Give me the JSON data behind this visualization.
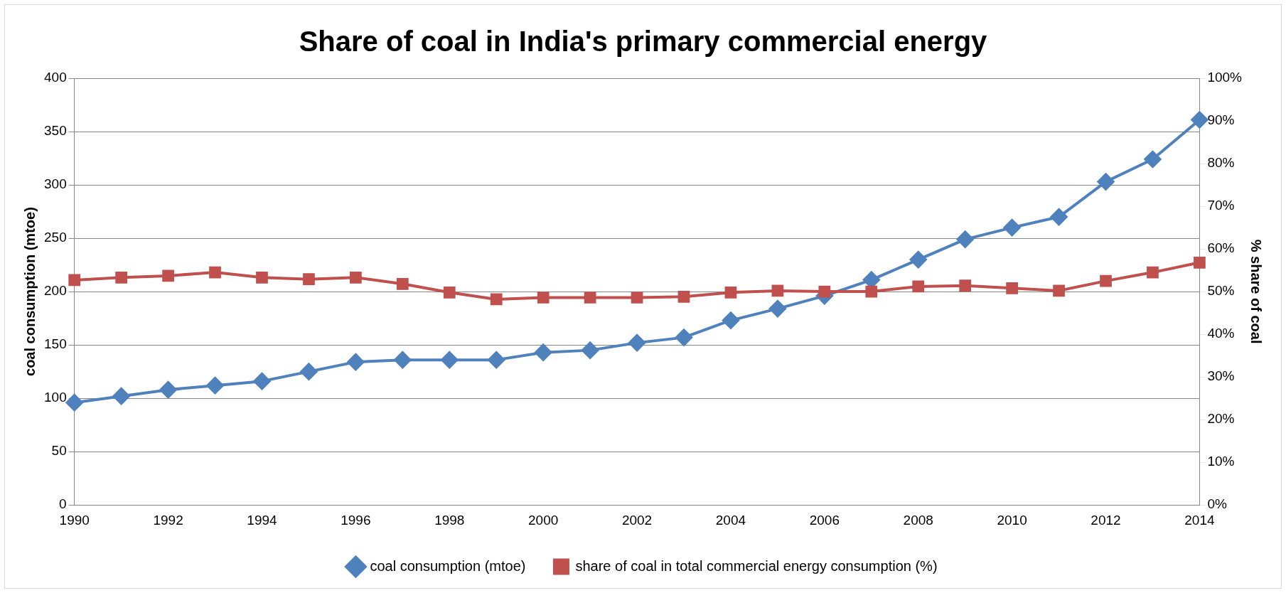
{
  "chart_data": {
    "type": "line",
    "title": "Share of coal in India's primary commercial energy",
    "ylabel": "coal consumption (mtoe)",
    "y2label": "% share of coal",
    "categories": [
      "1990",
      null,
      "1992",
      null,
      "1994",
      null,
      "1996",
      null,
      "1998",
      null,
      "2000",
      null,
      "2002",
      null,
      "2004",
      null,
      "2006",
      null,
      "2008",
      null,
      "2010",
      null,
      "2012",
      null,
      "2014"
    ],
    "series": [
      {
        "name": "coal consumption (mtoe)",
        "color": "#4f81bd",
        "marker": "diamond",
        "values": [
          96,
          102,
          108,
          112,
          116,
          125,
          134,
          136,
          136,
          136,
          143,
          145,
          152,
          157,
          173,
          184,
          196,
          211,
          230,
          249,
          260,
          270,
          303,
          324,
          361
        ]
      },
      {
        "name": "share of coal in total commercial energy consumption (%)",
        "color": "#c0504d",
        "marker": "square",
        "axis": "y2",
        "values": [
          52.7,
          53.3,
          53.7,
          54.5,
          53.3,
          52.9,
          53.3,
          51.8,
          49.8,
          48.2,
          48.6,
          48.6,
          48.6,
          48.8,
          49.8,
          50.2,
          50,
          50,
          51.2,
          51.4,
          50.8,
          50.2,
          52.5,
          54.5,
          56.8
        ]
      }
    ],
    "ylim": [
      0,
      400
    ],
    "yticks": [
      0,
      50,
      100,
      150,
      200,
      250,
      300,
      350,
      400
    ],
    "y2lim": [
      0,
      100
    ],
    "y2ticks": [
      {
        "value": 0,
        "label": "0%"
      },
      {
        "value": 10,
        "label": "10%"
      },
      {
        "value": 20,
        "label": "20%"
      },
      {
        "value": 30,
        "label": "30%"
      },
      {
        "value": 40,
        "label": "40%"
      },
      {
        "value": 50,
        "label": "50%"
      },
      {
        "value": 60,
        "label": "60%"
      },
      {
        "value": 70,
        "label": "70%"
      },
      {
        "value": 80,
        "label": "80%"
      },
      {
        "value": 90,
        "label": "90%"
      },
      {
        "value": 100,
        "label": "100%"
      }
    ],
    "grid": "y",
    "legend": "bottom",
    "line_style": "solid"
  }
}
